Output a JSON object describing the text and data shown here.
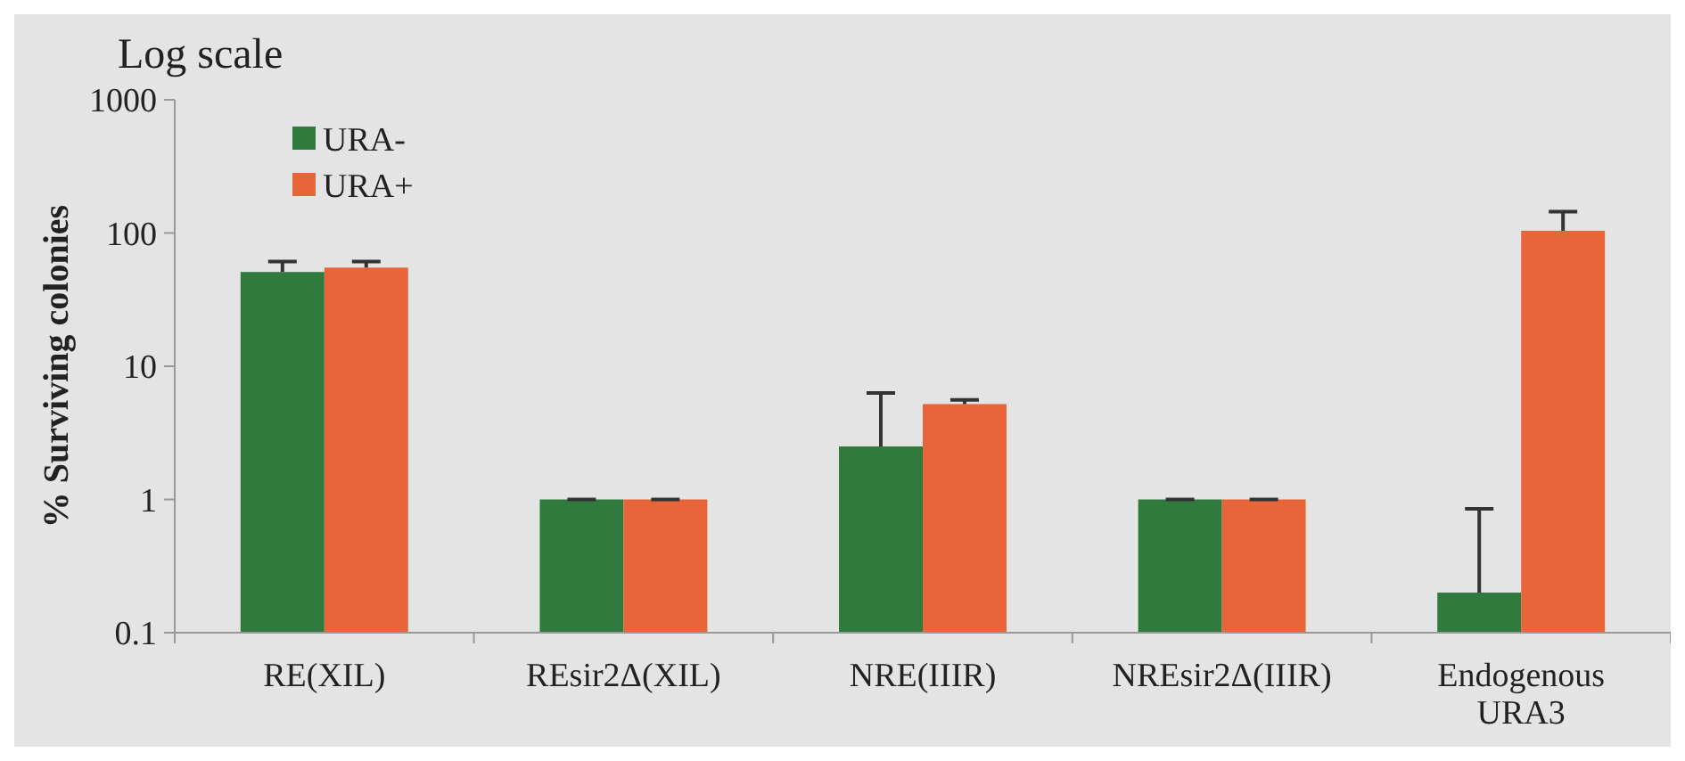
{
  "chart_data": {
    "type": "bar",
    "title": "Log scale",
    "ylabel": "% Surviving colonies",
    "log": true,
    "legend": "top left",
    "grid": false,
    "categories": [
      "RE(XIL)",
      "REsir2Δ(XIL)",
      "NRE(IIIR)",
      "NREsir2Δ(IIIR)",
      "Endogenous URA3"
    ],
    "ylim": [
      0.1,
      1000
    ],
    "yticks": [
      0.1,
      1,
      10,
      100,
      1000
    ],
    "series": [
      {
        "name": "URA-",
        "color": "#2f7a3c",
        "values": [
          51,
          1,
          2.5,
          1,
          0.2
        ],
        "errors": [
          [
            51,
            61
          ],
          [
            1,
            1
          ],
          [
            2.5,
            6.3
          ],
          [
            1,
            1
          ],
          [
            0.2,
            0.85
          ]
        ]
      },
      {
        "name": "URA+",
        "color": "#e8653a",
        "values": [
          55,
          1,
          5.2,
          1,
          104
        ],
        "errors": [
          [
            55,
            61
          ],
          [
            1,
            1
          ],
          [
            5.2,
            5.6
          ],
          [
            1,
            1
          ],
          [
            104,
            145
          ]
        ]
      }
    ]
  }
}
